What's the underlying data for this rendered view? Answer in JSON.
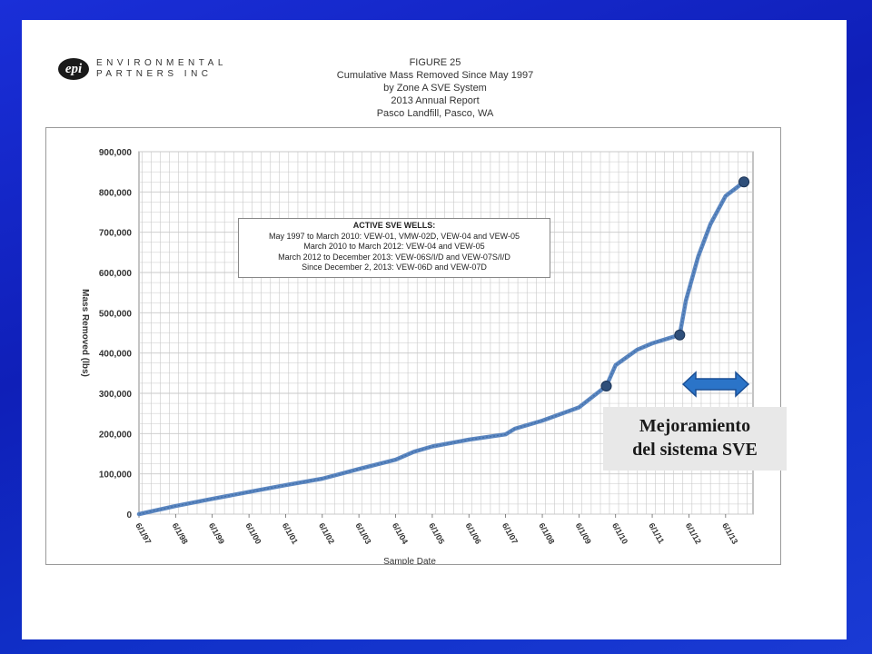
{
  "logo": {
    "mark": "epi",
    "line1": "ENVIRONMENTAL",
    "line2": "PARTNERS INC"
  },
  "header": {
    "figure": "FIGURE 25",
    "title": "Cumulative Mass Removed Since May 1997",
    "subtitle": "by Zone A SVE System",
    "report": "2013 Annual Report",
    "site": "Pasco Landfill, Pasco, WA"
  },
  "legend": {
    "title": "ACTIVE SVE WELLS:",
    "lines": [
      "May 1997 to March 2010: VEW-01, VMW-02D, VEW-04 and VEW-05",
      "March 2010 to March 2012: VEW-04 and VEW-05",
      "March 2012 to December 2013: VEW-06S/I/D and VEW-07S/I/D",
      "Since December 2, 2013: VEW-06D and VEW-07D"
    ]
  },
  "callout": {
    "line1": "Mejoramiento",
    "line2": "del sistema SVE"
  },
  "colors": {
    "series": "#5b86c0",
    "marker": "#2f4f7a",
    "arrow": "#2b74c8",
    "grid": "#c8c8c8"
  },
  "chart_data": {
    "type": "line",
    "xlabel": "Sample Date",
    "ylabel": "Mass Removed (lbs)",
    "ylim": [
      0,
      900000
    ],
    "yticks": [
      0,
      100000,
      200000,
      300000,
      400000,
      500000,
      600000,
      700000,
      800000,
      900000
    ],
    "ytick_labels": [
      "0",
      "100,000",
      "200,000",
      "300,000",
      "400,000",
      "500,000",
      "600,000",
      "700,000",
      "800,000",
      "900,000"
    ],
    "xticks": [
      "6/1/97",
      "6/1/98",
      "6/1/99",
      "6/1/00",
      "6/1/01",
      "6/1/02",
      "6/1/03",
      "6/1/04",
      "6/1/05",
      "6/1/06",
      "6/1/07",
      "6/1/08",
      "6/1/09",
      "6/1/10",
      "6/1/11",
      "6/1/12",
      "6/1/13"
    ],
    "grid": true,
    "series": [
      {
        "x": [
          "1997-06-01",
          "1998-06-01",
          "1999-06-01",
          "2000-06-01",
          "2001-06-01",
          "2002-06-01",
          "2003-06-01",
          "2004-06-01",
          "2004-12-01",
          "2005-06-01",
          "2006-06-01",
          "2007-06-01",
          "2007-09-01",
          "2008-06-01",
          "2009-06-01",
          "2010-03-01",
          "2010-06-01",
          "2011-01-01",
          "2011-06-01",
          "2012-03-01",
          "2012-05-01",
          "2012-09-01",
          "2013-01-01",
          "2013-06-01",
          "2013-12-01"
        ],
        "y": [
          0,
          20000,
          38000,
          55000,
          72000,
          88000,
          112000,
          135000,
          155000,
          168000,
          185000,
          198000,
          212000,
          232000,
          265000,
          318000,
          370000,
          408000,
          424000,
          445000,
          530000,
          640000,
          720000,
          790000,
          825000
        ]
      }
    ],
    "markers": [
      {
        "x": "2010-03-01",
        "y": 318000
      },
      {
        "x": "2012-03-01",
        "y": 445000
      },
      {
        "x": "2013-12-01",
        "y": 825000
      }
    ]
  }
}
